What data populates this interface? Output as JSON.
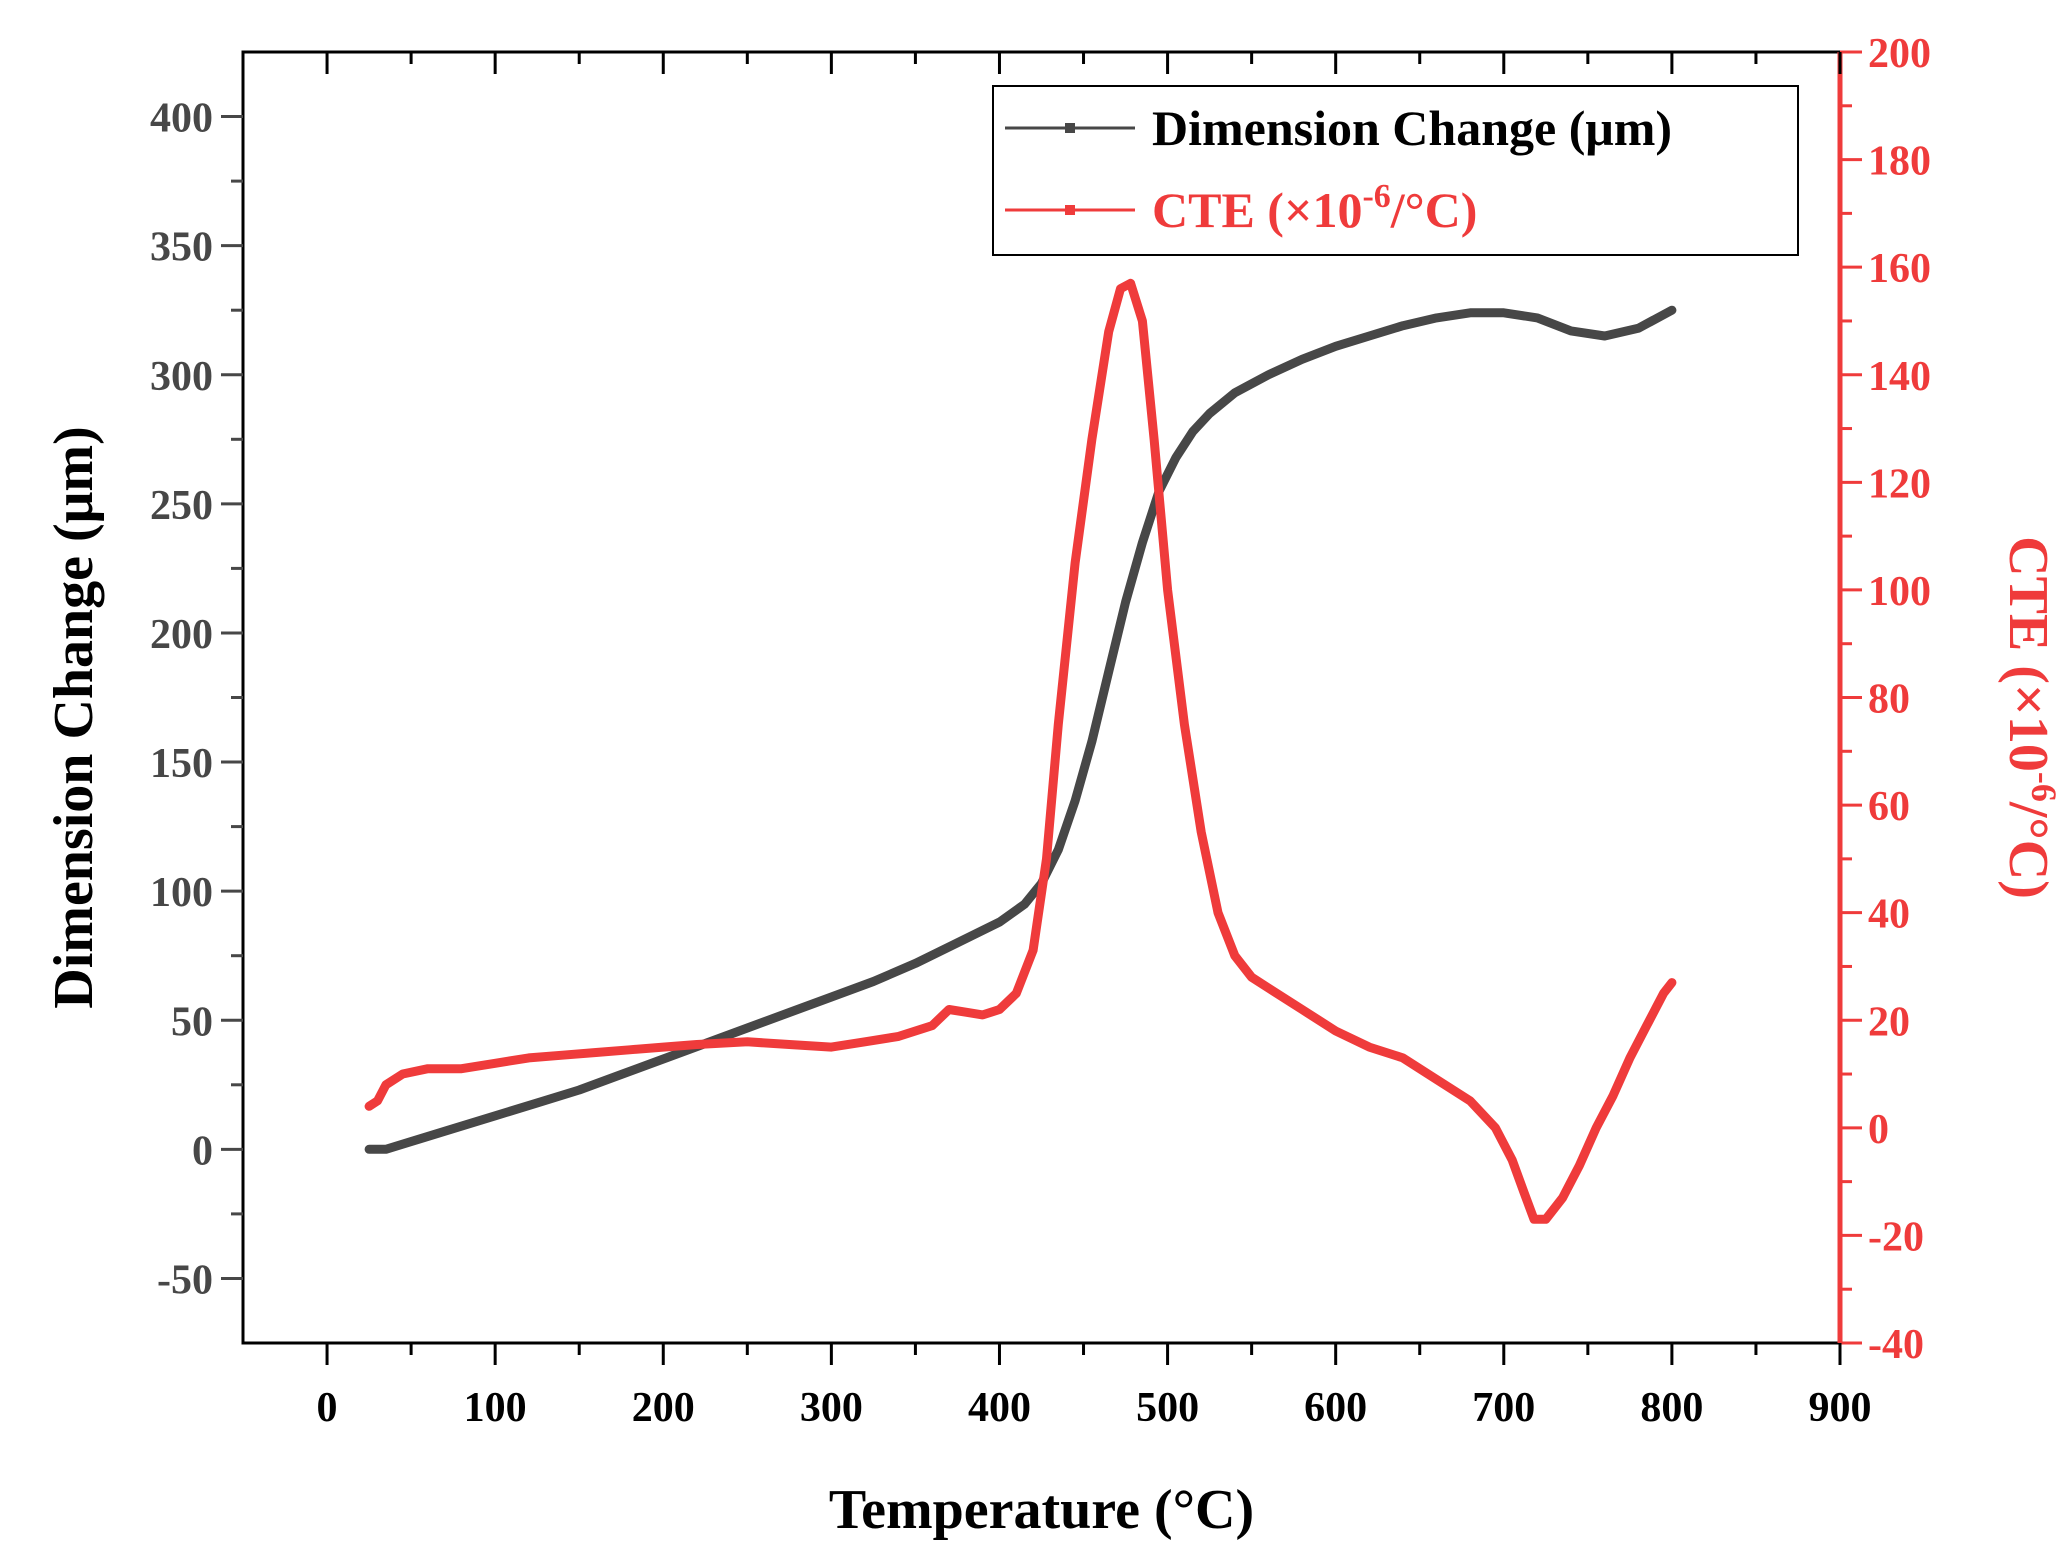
{
  "chart_data": {
    "type": "line",
    "xlabel": "Temperature (°C)",
    "ylabel_left": "Dimension Change (μm)",
    "ylabel_right": {
      "base": "CTE (×10",
      "sup": "-6",
      "tail": "/°C)"
    },
    "xlim": [
      -50,
      900
    ],
    "ylim_left": [
      -75,
      425
    ],
    "ylim_right": [
      -40,
      200
    ],
    "x_ticks": [
      0,
      100,
      200,
      300,
      400,
      500,
      600,
      700,
      800,
      900
    ],
    "y_left_ticks": [
      -50,
      0,
      50,
      100,
      150,
      200,
      250,
      300,
      350,
      400
    ],
    "y_right_ticks": [
      -40,
      -20,
      0,
      20,
      40,
      60,
      80,
      100,
      120,
      140,
      160,
      180,
      200
    ],
    "grid": false,
    "legend_position": "top-right",
    "colors": {
      "dimension": "#474747",
      "cte": "#ef3b3b"
    },
    "legend": [
      {
        "text": "Dimension Change (μm)"
      },
      {
        "base": "CTE (×10",
        "sup": "-6",
        "tail": "/°C)"
      }
    ],
    "series": [
      {
        "name": "Dimension Change (μm)",
        "axis": "left",
        "points": [
          [
            25,
            0
          ],
          [
            35,
            0
          ],
          [
            50,
            3
          ],
          [
            75,
            8
          ],
          [
            100,
            13
          ],
          [
            125,
            18
          ],
          [
            150,
            23
          ],
          [
            175,
            29
          ],
          [
            200,
            35
          ],
          [
            225,
            41
          ],
          [
            250,
            47
          ],
          [
            275,
            53
          ],
          [
            300,
            59
          ],
          [
            325,
            65
          ],
          [
            350,
            72
          ],
          [
            375,
            80
          ],
          [
            400,
            88
          ],
          [
            415,
            95
          ],
          [
            425,
            103
          ],
          [
            435,
            116
          ],
          [
            445,
            135
          ],
          [
            455,
            158
          ],
          [
            465,
            185
          ],
          [
            475,
            212
          ],
          [
            485,
            235
          ],
          [
            495,
            255
          ],
          [
            505,
            268
          ],
          [
            515,
            278
          ],
          [
            525,
            285
          ],
          [
            540,
            293
          ],
          [
            560,
            300
          ],
          [
            580,
            306
          ],
          [
            600,
            311
          ],
          [
            620,
            315
          ],
          [
            640,
            319
          ],
          [
            660,
            322
          ],
          [
            680,
            324
          ],
          [
            700,
            324
          ],
          [
            720,
            322
          ],
          [
            740,
            317
          ],
          [
            760,
            315
          ],
          [
            780,
            318
          ],
          [
            800,
            325
          ]
        ]
      },
      {
        "name": "CTE (×10-6/°C)",
        "axis": "right",
        "points": [
          [
            25,
            4
          ],
          [
            30,
            5
          ],
          [
            35,
            8
          ],
          [
            45,
            10
          ],
          [
            60,
            11
          ],
          [
            80,
            11
          ],
          [
            100,
            12
          ],
          [
            120,
            13
          ],
          [
            140,
            13.5
          ],
          [
            160,
            14
          ],
          [
            180,
            14.5
          ],
          [
            200,
            15
          ],
          [
            220,
            15.5
          ],
          [
            250,
            16
          ],
          [
            275,
            15.5
          ],
          [
            300,
            15
          ],
          [
            320,
            16
          ],
          [
            340,
            17
          ],
          [
            360,
            19
          ],
          [
            370,
            22
          ],
          [
            380,
            21.5
          ],
          [
            390,
            21
          ],
          [
            400,
            22
          ],
          [
            410,
            25
          ],
          [
            420,
            33
          ],
          [
            428,
            50
          ],
          [
            435,
            75
          ],
          [
            445,
            105
          ],
          [
            455,
            128
          ],
          [
            465,
            148
          ],
          [
            472,
            156
          ],
          [
            478,
            157
          ],
          [
            485,
            150
          ],
          [
            492,
            128
          ],
          [
            500,
            100
          ],
          [
            510,
            75
          ],
          [
            520,
            55
          ],
          [
            530,
            40
          ],
          [
            540,
            32
          ],
          [
            550,
            28
          ],
          [
            560,
            26
          ],
          [
            580,
            22
          ],
          [
            600,
            18
          ],
          [
            620,
            15
          ],
          [
            640,
            13
          ],
          [
            660,
            9
          ],
          [
            680,
            5
          ],
          [
            695,
            0
          ],
          [
            705,
            -6
          ],
          [
            712,
            -12
          ],
          [
            718,
            -17
          ],
          [
            725,
            -17
          ],
          [
            735,
            -13
          ],
          [
            745,
            -7
          ],
          [
            755,
            0
          ],
          [
            765,
            6
          ],
          [
            775,
            13
          ],
          [
            785,
            19
          ],
          [
            795,
            25
          ],
          [
            800,
            27
          ]
        ]
      }
    ]
  }
}
